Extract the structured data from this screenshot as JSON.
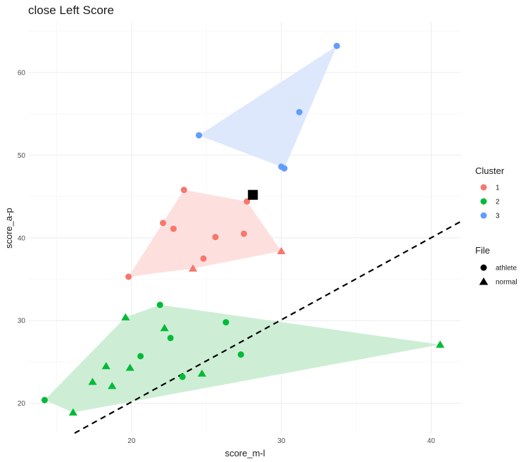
{
  "chart_data": {
    "type": "scatter",
    "title": "close Left Score",
    "xlabel": "score_m-l",
    "ylabel": "score_a-p",
    "xlim": [
      13.1,
      42.0
    ],
    "ylim": [
      16.4,
      66.2
    ],
    "x_ticks": [
      20,
      30,
      40
    ],
    "y_ticks": [
      20,
      30,
      40,
      50,
      60
    ],
    "grid": true,
    "legend_position": "right",
    "legends": {
      "color": {
        "title": "Cluster",
        "items": [
          {
            "label": "1",
            "color": "#F8766D"
          },
          {
            "label": "2",
            "color": "#00BA38"
          },
          {
            "label": "3",
            "color": "#619CFF"
          }
        ]
      },
      "shape": {
        "title": "File",
        "items": [
          {
            "label": "athlete",
            "shape": "circle"
          },
          {
            "label": "normal",
            "shape": "triangle"
          }
        ]
      }
    },
    "hull_fill": {
      "1": "#fde0de",
      "2": "#cdeed5",
      "3": "#dde8fd"
    },
    "points": [
      {
        "x": 23.5,
        "y": 45.8,
        "cluster": "1",
        "file": "athlete"
      },
      {
        "x": 22.1,
        "y": 41.8,
        "cluster": "1",
        "file": "athlete"
      },
      {
        "x": 22.8,
        "y": 41.1,
        "cluster": "1",
        "file": "athlete"
      },
      {
        "x": 25.6,
        "y": 40.1,
        "cluster": "1",
        "file": "athlete"
      },
      {
        "x": 27.5,
        "y": 40.5,
        "cluster": "1",
        "file": "athlete"
      },
      {
        "x": 27.7,
        "y": 44.4,
        "cluster": "1",
        "file": "athlete"
      },
      {
        "x": 24.8,
        "y": 37.5,
        "cluster": "1",
        "file": "athlete"
      },
      {
        "x": 19.8,
        "y": 35.3,
        "cluster": "1",
        "file": "athlete"
      },
      {
        "x": 24.1,
        "y": 36.3,
        "cluster": "1",
        "file": "normal"
      },
      {
        "x": 30.0,
        "y": 38.4,
        "cluster": "1",
        "file": "normal"
      },
      {
        "x": 21.9,
        "y": 31.9,
        "cluster": "2",
        "file": "athlete"
      },
      {
        "x": 26.3,
        "y": 29.8,
        "cluster": "2",
        "file": "athlete"
      },
      {
        "x": 22.6,
        "y": 27.9,
        "cluster": "2",
        "file": "athlete"
      },
      {
        "x": 20.6,
        "y": 25.7,
        "cluster": "2",
        "file": "athlete"
      },
      {
        "x": 27.3,
        "y": 25.9,
        "cluster": "2",
        "file": "athlete"
      },
      {
        "x": 23.4,
        "y": 23.2,
        "cluster": "2",
        "file": "athlete"
      },
      {
        "x": 14.2,
        "y": 20.4,
        "cluster": "2",
        "file": "athlete"
      },
      {
        "x": 19.6,
        "y": 30.4,
        "cluster": "2",
        "file": "normal"
      },
      {
        "x": 22.2,
        "y": 29.1,
        "cluster": "2",
        "file": "normal"
      },
      {
        "x": 18.3,
        "y": 24.5,
        "cluster": "2",
        "file": "normal"
      },
      {
        "x": 19.9,
        "y": 24.3,
        "cluster": "2",
        "file": "normal"
      },
      {
        "x": 17.4,
        "y": 22.6,
        "cluster": "2",
        "file": "normal"
      },
      {
        "x": 18.7,
        "y": 22.1,
        "cluster": "2",
        "file": "normal"
      },
      {
        "x": 24.7,
        "y": 23.6,
        "cluster": "2",
        "file": "normal"
      },
      {
        "x": 16.1,
        "y": 18.9,
        "cluster": "2",
        "file": "normal"
      },
      {
        "x": 40.6,
        "y": 27.1,
        "cluster": "2",
        "file": "normal"
      },
      {
        "x": 33.7,
        "y": 63.2,
        "cluster": "3",
        "file": "athlete"
      },
      {
        "x": 31.2,
        "y": 55.2,
        "cluster": "3",
        "file": "athlete"
      },
      {
        "x": 24.5,
        "y": 52.4,
        "cluster": "3",
        "file": "athlete"
      },
      {
        "x": 30.0,
        "y": 48.6,
        "cluster": "3",
        "file": "athlete"
      },
      {
        "x": 30.2,
        "y": 48.4,
        "cluster": "3",
        "file": "athlete"
      }
    ],
    "hulls": {
      "1": [
        [
          23.5,
          45.8
        ],
        [
          27.7,
          44.4
        ],
        [
          30.0,
          38.4
        ],
        [
          24.1,
          36.3
        ],
        [
          19.8,
          35.3
        ]
      ],
      "2": [
        [
          14.2,
          20.4
        ],
        [
          19.6,
          30.4
        ],
        [
          21.9,
          31.9
        ],
        [
          40.6,
          27.1
        ],
        [
          16.1,
          18.9
        ]
      ],
      "3": [
        [
          24.5,
          52.4
        ],
        [
          33.7,
          63.2
        ],
        [
          30.2,
          48.4
        ],
        [
          30.0,
          48.6
        ]
      ]
    },
    "highlight_point": {
      "x": 28.1,
      "y": 45.2,
      "color": "#000000",
      "shape": "square"
    },
    "reference_line": {
      "from": [
        16.2,
        16.4
      ],
      "to": [
        42.0,
        42.0
      ],
      "style": "dashed",
      "color": "#000000"
    }
  }
}
